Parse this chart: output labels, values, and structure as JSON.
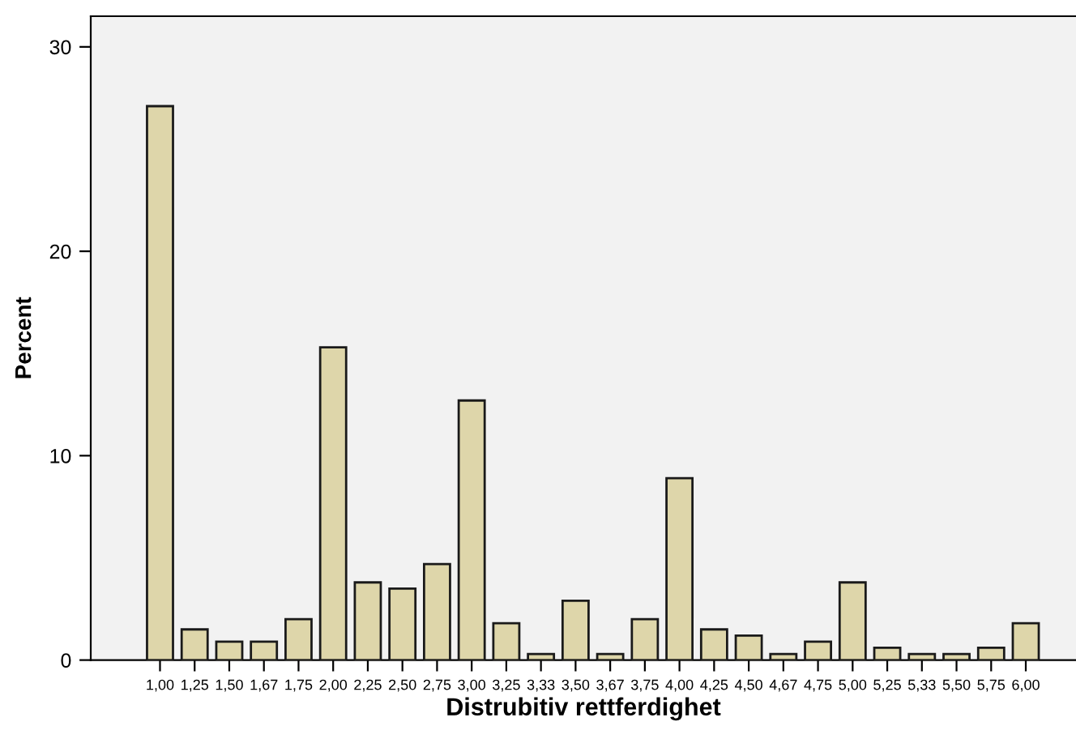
{
  "chart_data": {
    "type": "bar",
    "xlabel": "Distrubitiv rettferdighet",
    "ylabel": "Percent",
    "categories": [
      "1,00",
      "1,25",
      "1,50",
      "1,67",
      "1,75",
      "2,00",
      "2,25",
      "2,50",
      "2,75",
      "3,00",
      "3,25",
      "3,33",
      "3,50",
      "3,67",
      "3,75",
      "4,00",
      "4,25",
      "4,50",
      "4,67",
      "4,75",
      "5,00",
      "5,25",
      "5,33",
      "5,50",
      "5,75",
      "6,00"
    ],
    "values": [
      27.1,
      1.5,
      0.9,
      0.9,
      2.0,
      15.3,
      3.8,
      3.5,
      4.7,
      12.7,
      1.8,
      0.3,
      2.9,
      0.3,
      2.0,
      8.9,
      1.5,
      1.2,
      0.3,
      0.9,
      3.8,
      0.6,
      0.3,
      0.3,
      0.6,
      1.8
    ],
    "color": "#ded6aa",
    "ylim": [
      0,
      31.5
    ],
    "yticks": [
      0,
      10,
      20,
      30
    ],
    "grid": false
  }
}
